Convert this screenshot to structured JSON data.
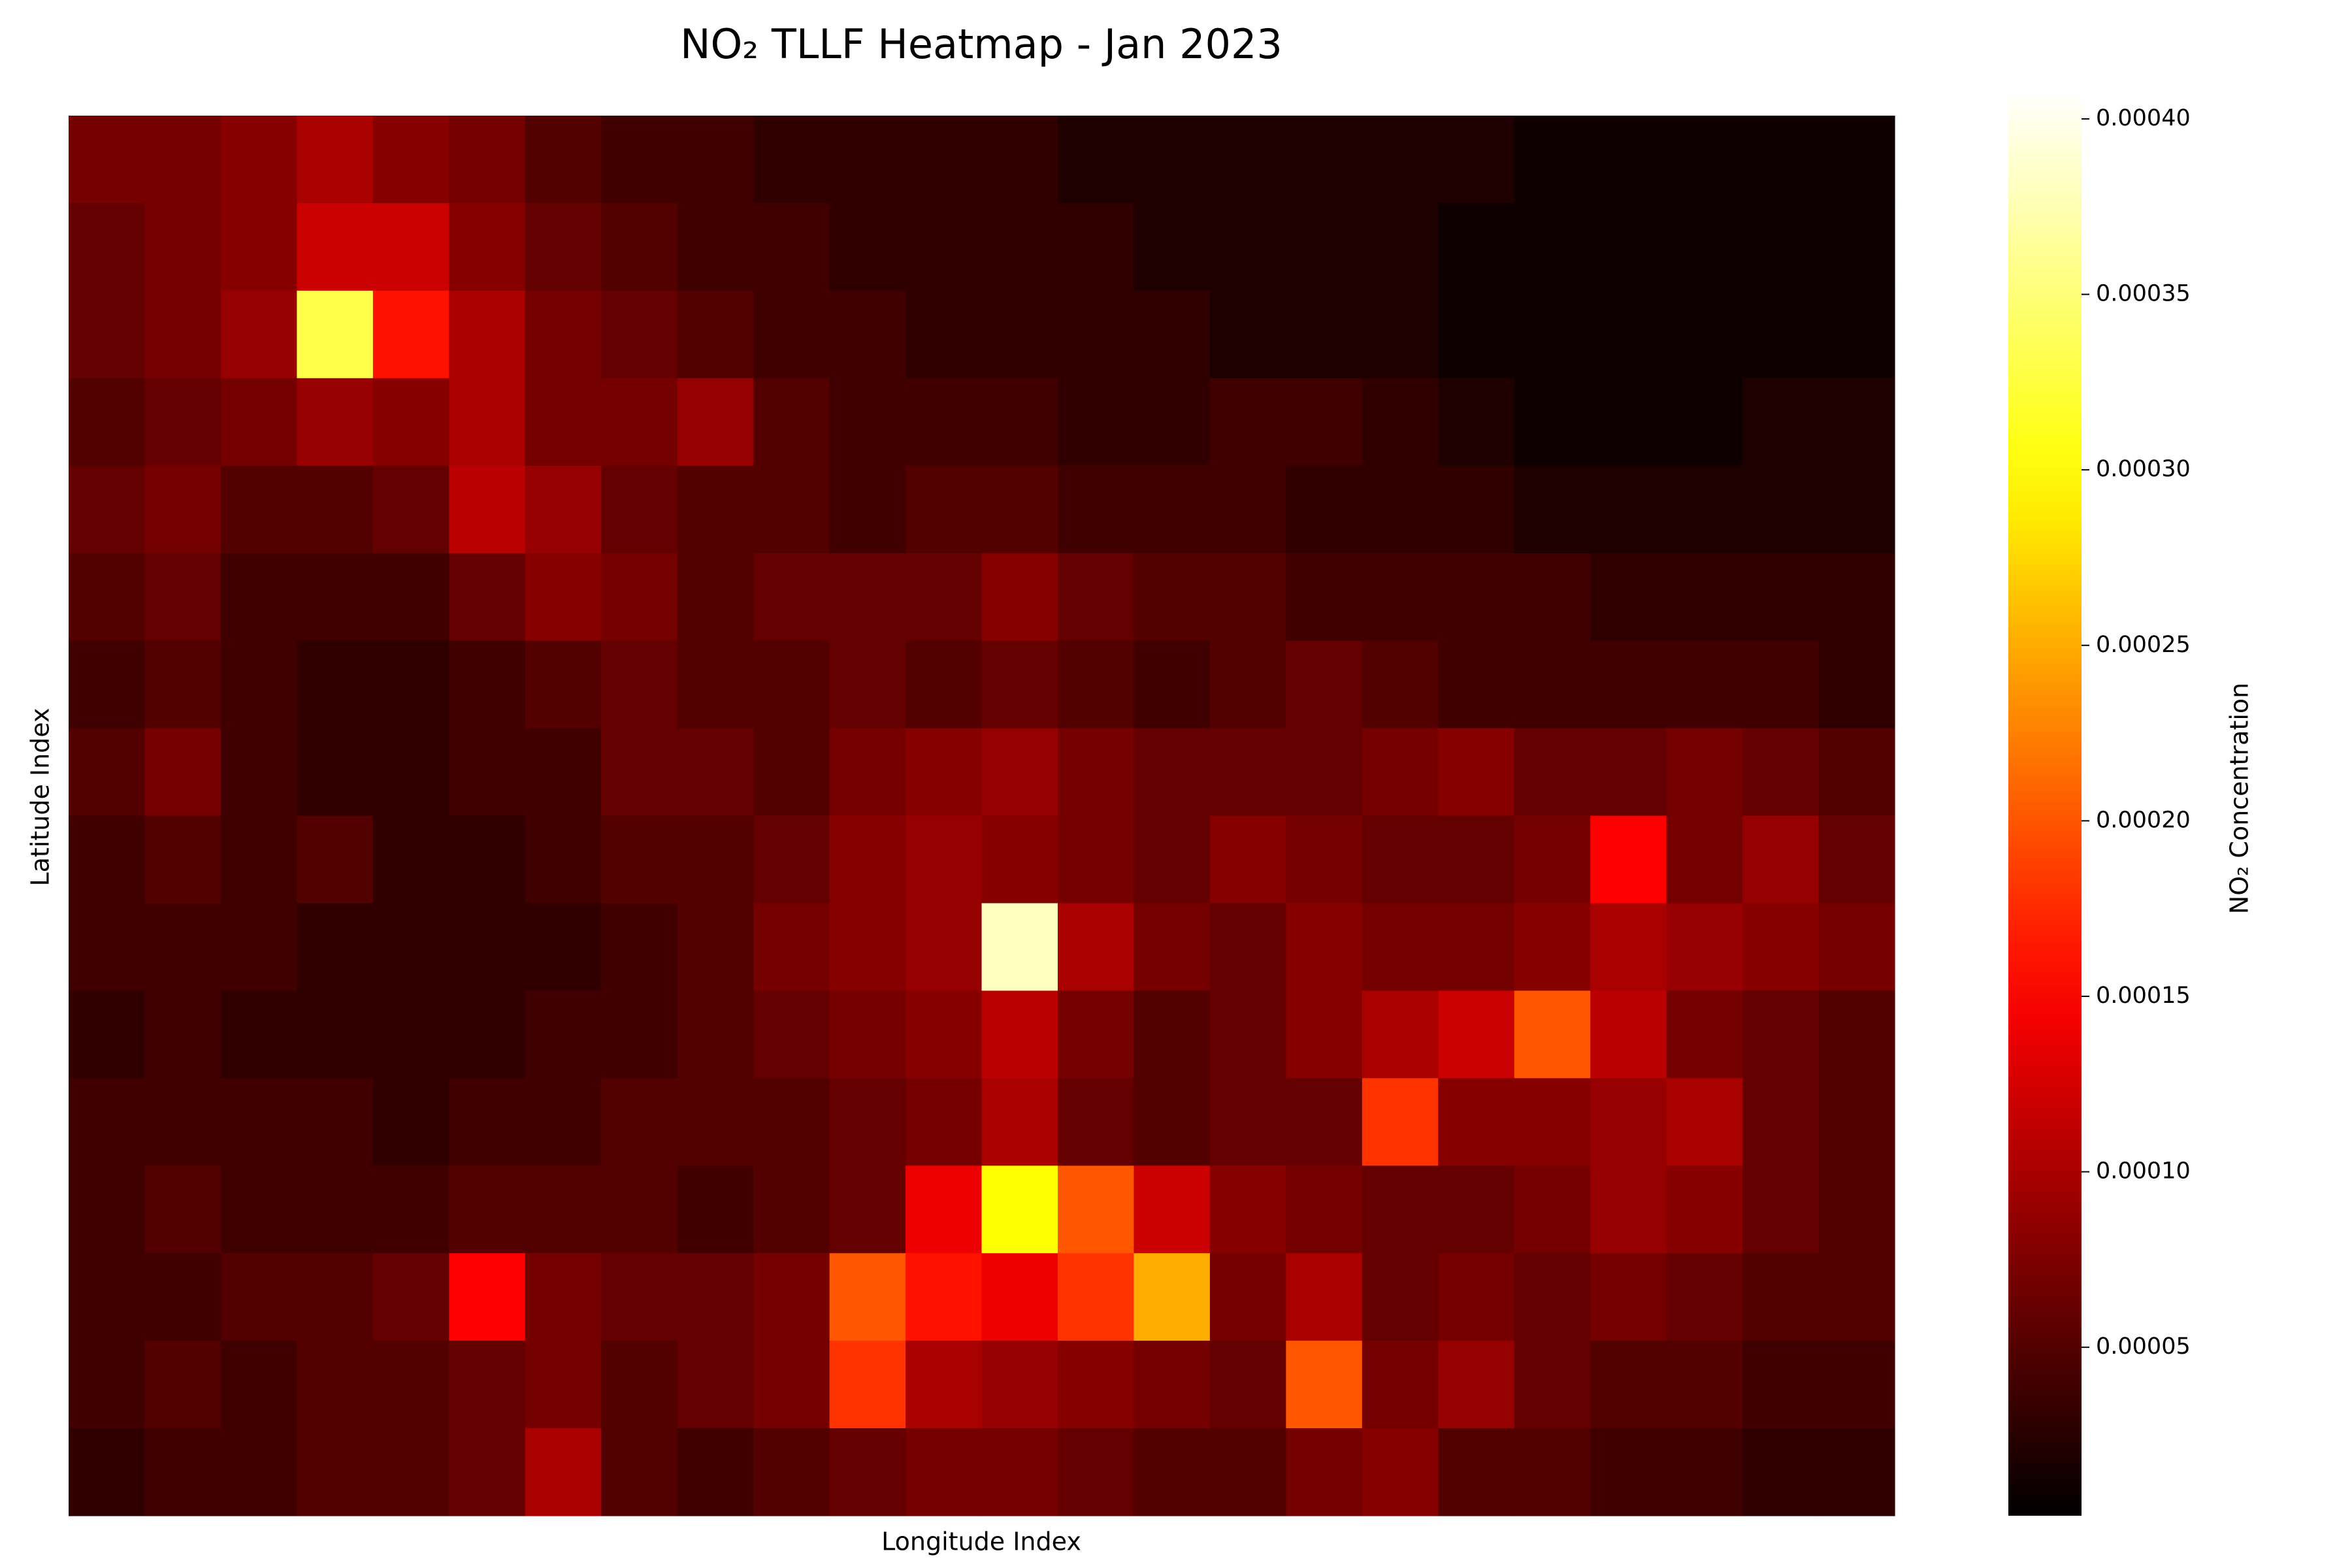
{
  "chart_data": {
    "type": "heatmap",
    "title": "NO₂ TLLF Heatmap - Jan 2023",
    "xlabel": "Longitude Index",
    "ylabel": "Latitude Index",
    "colorbar_label": "NO₂ Concentration",
    "colormap": "hot",
    "zlim": [
      2e-06,
      0.000408
    ],
    "zticks": [
      {
        "value": 5e-05,
        "label": "0.00005"
      },
      {
        "value": 0.0001,
        "label": "0.00010"
      },
      {
        "value": 0.00015,
        "label": "0.00015"
      },
      {
        "value": 0.0002,
        "label": "0.00020"
      },
      {
        "value": 0.00025,
        "label": "0.00025"
      },
      {
        "value": 0.0003,
        "label": "0.00030"
      },
      {
        "value": 0.00035,
        "label": "0.00035"
      },
      {
        "value": 0.0004,
        "label": "0.00040"
      }
    ],
    "z": [
      [
        7e-05,
        7e-05,
        8e-05,
        0.0001,
        8e-05,
        7e-05,
        5e-05,
        4e-05,
        4e-05,
        3e-05,
        3e-05,
        3e-05,
        3e-05,
        2e-05,
        2e-05,
        2e-05,
        2e-05,
        2e-05,
        2e-05,
        1e-05,
        1e-05,
        1e-05,
        1e-05,
        1e-05
      ],
      [
        6e-05,
        7e-05,
        8e-05,
        0.00012,
        0.00012,
        8e-05,
        6e-05,
        5e-05,
        4e-05,
        4e-05,
        3e-05,
        3e-05,
        3e-05,
        3e-05,
        2e-05,
        2e-05,
        2e-05,
        2e-05,
        1e-05,
        1e-05,
        1e-05,
        1e-05,
        1e-05,
        1e-05
      ],
      [
        6e-05,
        7e-05,
        9e-05,
        0.00033,
        0.00016,
        0.0001,
        7e-05,
        6e-05,
        5e-05,
        4e-05,
        4e-05,
        3e-05,
        3e-05,
        3e-05,
        3e-05,
        2e-05,
        2e-05,
        2e-05,
        1e-05,
        1e-05,
        1e-05,
        1e-05,
        1e-05,
        1e-05
      ],
      [
        5e-05,
        6e-05,
        7e-05,
        9e-05,
        8e-05,
        0.0001,
        7e-05,
        7e-05,
        9e-05,
        5e-05,
        4e-05,
        4e-05,
        4e-05,
        3e-05,
        3e-05,
        4e-05,
        4e-05,
        3e-05,
        2e-05,
        1e-05,
        1e-05,
        1e-05,
        2e-05,
        2e-05
      ],
      [
        6e-05,
        7e-05,
        5e-05,
        5e-05,
        6e-05,
        0.00011,
        9e-05,
        6e-05,
        5e-05,
        5e-05,
        4e-05,
        5e-05,
        5e-05,
        4e-05,
        4e-05,
        4e-05,
        3e-05,
        3e-05,
        3e-05,
        2e-05,
        2e-05,
        2e-05,
        2e-05,
        2e-05
      ],
      [
        5e-05,
        6e-05,
        4e-05,
        4e-05,
        4e-05,
        6e-05,
        8e-05,
        7e-05,
        5e-05,
        6e-05,
        6e-05,
        6e-05,
        8e-05,
        6e-05,
        5e-05,
        5e-05,
        4e-05,
        4e-05,
        4e-05,
        4e-05,
        3e-05,
        3e-05,
        3e-05,
        3e-05
      ],
      [
        4e-05,
        5e-05,
        4e-05,
        3e-05,
        3e-05,
        4e-05,
        5e-05,
        6e-05,
        5e-05,
        5e-05,
        6e-05,
        5e-05,
        6e-05,
        5e-05,
        4e-05,
        5e-05,
        6e-05,
        5e-05,
        4e-05,
        4e-05,
        4e-05,
        4e-05,
        4e-05,
        3e-05
      ],
      [
        5e-05,
        7e-05,
        4e-05,
        3e-05,
        3e-05,
        4e-05,
        4e-05,
        6e-05,
        6e-05,
        5e-05,
        7e-05,
        8e-05,
        9e-05,
        7e-05,
        6e-05,
        6e-05,
        6e-05,
        7e-05,
        8e-05,
        6e-05,
        6e-05,
        7e-05,
        6e-05,
        5e-05
      ],
      [
        4e-05,
        5e-05,
        4e-05,
        5e-05,
        3e-05,
        3e-05,
        4e-05,
        5e-05,
        5e-05,
        6e-05,
        8e-05,
        9e-05,
        8e-05,
        7e-05,
        6e-05,
        8e-05,
        7e-05,
        6e-05,
        6e-05,
        7e-05,
        0.00015,
        7e-05,
        9e-05,
        6e-05
      ],
      [
        4e-05,
        4e-05,
        4e-05,
        3e-05,
        3e-05,
        3e-05,
        3e-05,
        4e-05,
        5e-05,
        7e-05,
        8e-05,
        9e-05,
        0.00038,
        0.0001,
        7e-05,
        6e-05,
        8e-05,
        7e-05,
        7e-05,
        8e-05,
        0.0001,
        9e-05,
        8e-05,
        7e-05
      ],
      [
        3e-05,
        4e-05,
        3e-05,
        3e-05,
        3e-05,
        3e-05,
        4e-05,
        4e-05,
        5e-05,
        6e-05,
        7e-05,
        8e-05,
        0.00011,
        7e-05,
        5e-05,
        6e-05,
        8e-05,
        0.0001,
        0.00012,
        0.0002,
        0.00011,
        7e-05,
        6e-05,
        5e-05
      ],
      [
        4e-05,
        4e-05,
        4e-05,
        4e-05,
        3e-05,
        4e-05,
        4e-05,
        5e-05,
        5e-05,
        5e-05,
        6e-05,
        7e-05,
        0.0001,
        6e-05,
        5e-05,
        6e-05,
        6e-05,
        0.00018,
        8e-05,
        8e-05,
        9e-05,
        0.0001,
        6e-05,
        5e-05
      ],
      [
        4e-05,
        5e-05,
        4e-05,
        4e-05,
        4e-05,
        5e-05,
        5e-05,
        5e-05,
        4e-05,
        5e-05,
        6e-05,
        0.00014,
        0.0003,
        0.0002,
        0.00012,
        8e-05,
        7e-05,
        6e-05,
        6e-05,
        7e-05,
        9e-05,
        8e-05,
        6e-05,
        5e-05
      ],
      [
        4e-05,
        4e-05,
        5e-05,
        5e-05,
        6e-05,
        0.00015,
        7e-05,
        6e-05,
        6e-05,
        7e-05,
        0.0002,
        0.00016,
        0.00014,
        0.00018,
        0.00025,
        7e-05,
        0.0001,
        6e-05,
        7e-05,
        6e-05,
        7e-05,
        6e-05,
        5e-05,
        5e-05
      ],
      [
        4e-05,
        5e-05,
        4e-05,
        5e-05,
        5e-05,
        6e-05,
        7e-05,
        5e-05,
        6e-05,
        7e-05,
        0.00018,
        0.0001,
        9e-05,
        8e-05,
        7e-05,
        6e-05,
        0.0002,
        7e-05,
        9e-05,
        6e-05,
        5e-05,
        5e-05,
        4e-05,
        4e-05
      ],
      [
        3e-05,
        4e-05,
        4e-05,
        5e-05,
        5e-05,
        6e-05,
        0.0001,
        5e-05,
        4e-05,
        5e-05,
        6e-05,
        7e-05,
        7e-05,
        6e-05,
        5e-05,
        5e-05,
        7e-05,
        8e-05,
        5e-05,
        5e-05,
        4e-05,
        4e-05,
        3e-05,
        3e-05
      ]
    ]
  }
}
